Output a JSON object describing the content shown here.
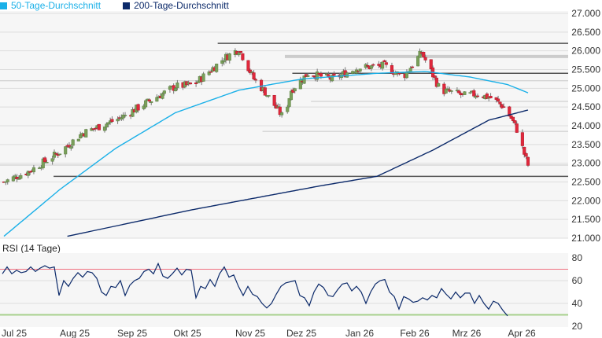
{
  "legend": [
    {
      "label": "50-Tage-Durchschnitt",
      "color": "#1ab0e8"
    },
    {
      "label": "200-Tage-Durchschnitt",
      "color": "#0c2a6a"
    }
  ],
  "rsi_title": "RSI (14 Tage)",
  "chart_data": [
    {
      "type": "candlestick",
      "title": "",
      "ylim": [
        21000,
        27000
      ],
      "yticks": [
        "27.000",
        "26.500",
        "26.000",
        "25.500",
        "25.000",
        "24.500",
        "24.000",
        "23.500",
        "23.000",
        "22.500",
        "22.000",
        "21.500",
        "21.000"
      ],
      "ytick_values": [
        27000,
        26500,
        26000,
        25500,
        25000,
        24500,
        24000,
        23500,
        23000,
        22500,
        22000,
        21500,
        21000
      ],
      "xticks": [
        "Jul 25",
        "Aug 25",
        "Sep 25",
        "Okt 25",
        "Nov 25",
        "Dez 25",
        "Jan 26",
        "Feb 26",
        "Mrz 26",
        "Apr 26"
      ],
      "close_keypoints_day_price": [
        [
          0,
          22500
        ],
        [
          14,
          22800
        ],
        [
          30,
          23300
        ],
        [
          42,
          23800
        ],
        [
          62,
          24200
        ],
        [
          76,
          24600
        ],
        [
          92,
          25050
        ],
        [
          102,
          25100
        ],
        [
          118,
          25800
        ],
        [
          126,
          26050
        ],
        [
          134,
          25250
        ],
        [
          140,
          24900
        ],
        [
          150,
          24200
        ],
        [
          154,
          24950
        ],
        [
          163,
          25400
        ],
        [
          176,
          25250
        ],
        [
          190,
          25550
        ],
        [
          204,
          25600
        ],
        [
          214,
          25300
        ],
        [
          224,
          25950
        ],
        [
          234,
          24950
        ],
        [
          244,
          24850
        ],
        [
          254,
          24850
        ],
        [
          246,
          24800
        ],
        [
          262,
          24730
        ],
        [
          268,
          24500
        ],
        [
          272,
          24200
        ],
        [
          275,
          23900
        ],
        [
          279,
          23250
        ],
        [
          281,
          22950
        ]
      ],
      "ma50_keypoints": [
        [
          0,
          21050
        ],
        [
          30,
          22300
        ],
        [
          60,
          23400
        ],
        [
          92,
          24350
        ],
        [
          126,
          24950
        ],
        [
          160,
          25250
        ],
        [
          200,
          25400
        ],
        [
          226,
          25450
        ],
        [
          250,
          25300
        ],
        [
          270,
          25100
        ],
        [
          281,
          24880
        ]
      ],
      "ma200_keypoints": [
        [
          34,
          21050
        ],
        [
          100,
          21750
        ],
        [
          170,
          22400
        ],
        [
          200,
          22650
        ],
        [
          230,
          23350
        ],
        [
          260,
          24150
        ],
        [
          281,
          24420
        ]
      ],
      "levels": [
        {
          "price": 26200,
          "style": "dark",
          "from_day": 118
        },
        {
          "price": 25850,
          "style": "light",
          "from_day": 154
        },
        {
          "price": 25400,
          "style": "dark",
          "from_day": 158
        },
        {
          "price": 25200,
          "style": "thin",
          "from_day": 0
        },
        {
          "price": 24650,
          "style": "thin",
          "from_day": 168
        },
        {
          "price": 23850,
          "style": "thin",
          "from_day": 142
        },
        {
          "price": 22950,
          "style": "thin",
          "from_day": 0
        },
        {
          "price": 22650,
          "style": "dark",
          "from_day": 30
        }
      ]
    },
    {
      "type": "line",
      "title": "RSI (14 Tage)",
      "ylim": [
        20,
        80
      ],
      "yticks": [
        "80",
        "60",
        "40",
        "20"
      ],
      "ytick_values": [
        80,
        60,
        40,
        20
      ],
      "overbought": 70,
      "oversold": 30,
      "values": [
        66,
        72,
        66,
        69,
        67,
        68,
        72,
        68,
        71,
        73,
        71,
        72,
        47,
        60,
        55,
        62,
        67,
        63,
        68,
        67,
        62,
        50,
        47,
        55,
        54,
        60,
        47,
        56,
        60,
        62,
        68,
        70,
        66,
        75,
        64,
        62,
        66,
        71,
        65,
        70,
        69,
        45,
        55,
        53,
        61,
        55,
        66,
        72,
        63,
        65,
        55,
        47,
        55,
        48,
        46,
        40,
        36,
        40,
        48,
        55,
        58,
        59,
        60,
        47,
        45,
        38,
        50,
        57,
        54,
        47,
        46,
        52,
        57,
        58,
        51,
        55,
        50,
        40,
        50,
        57,
        60,
        61,
        50,
        46,
        35,
        46,
        44,
        41,
        42,
        45,
        43,
        47,
        45,
        53,
        48,
        44,
        50,
        45,
        49,
        49,
        40,
        47,
        40,
        35,
        42,
        40,
        34,
        29
      ]
    }
  ]
}
